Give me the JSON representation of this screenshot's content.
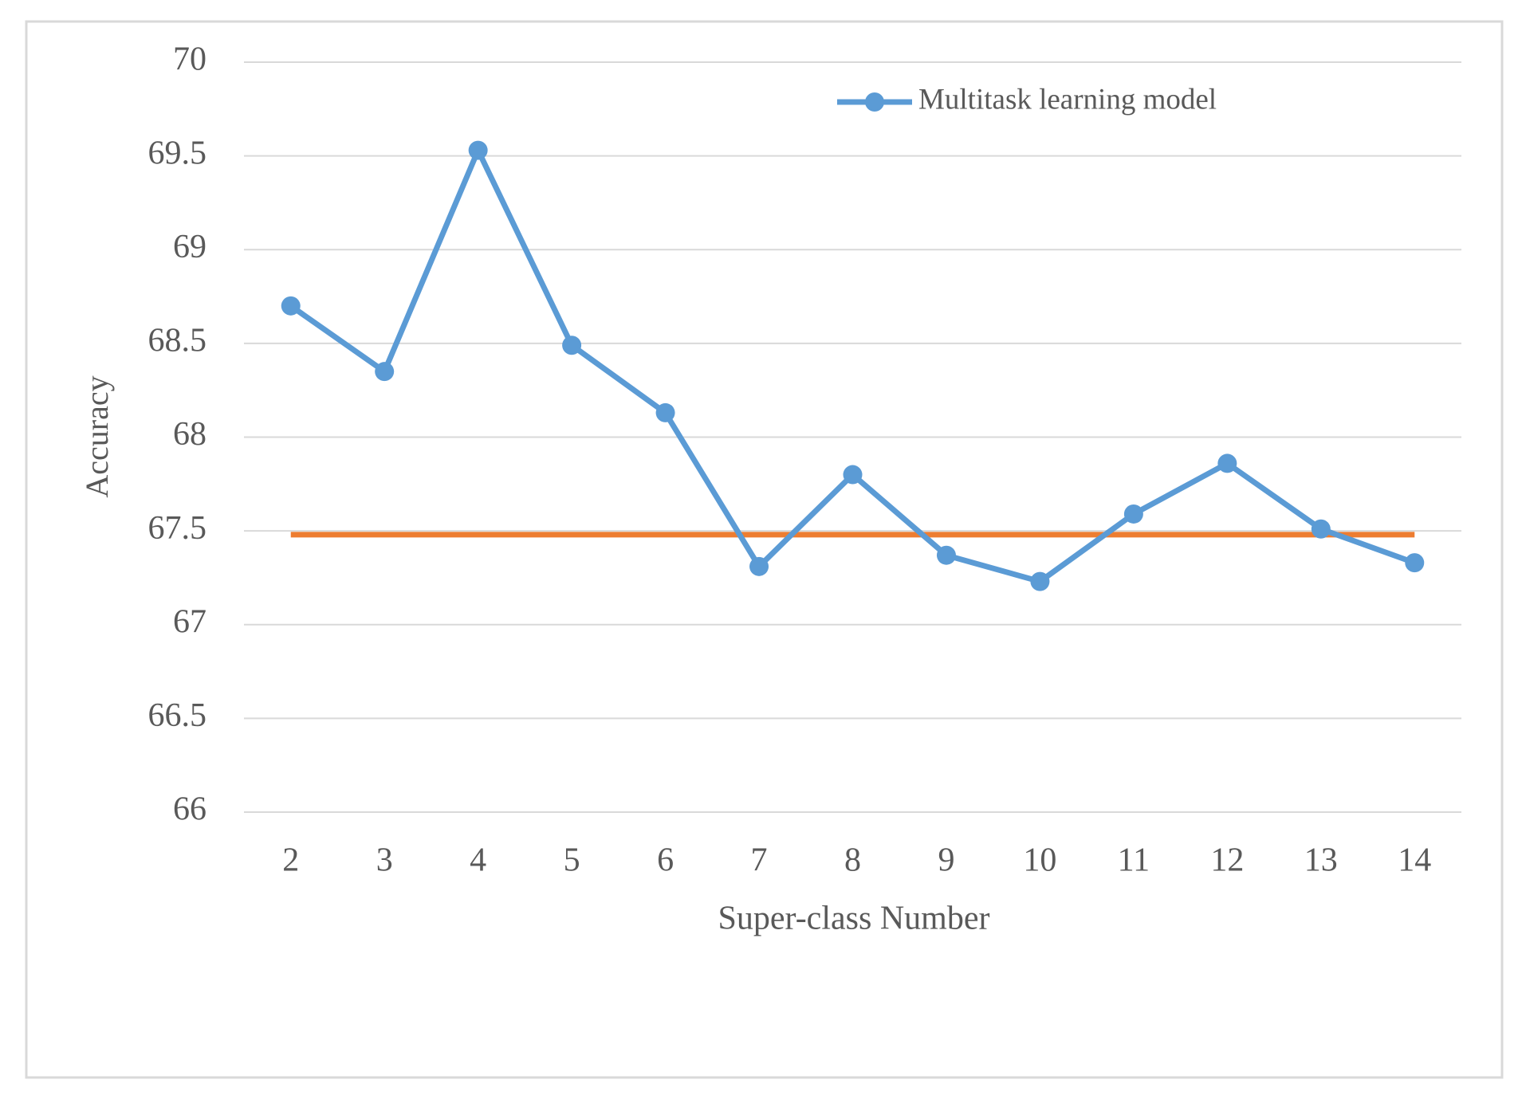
{
  "chart_data": {
    "type": "line",
    "x_label": "Super-class Number",
    "y_label": "Accuracy",
    "categories": [
      "2",
      "3",
      "4",
      "5",
      "6",
      "7",
      "8",
      "9",
      "10",
      "11",
      "12",
      "13",
      "14"
    ],
    "series": [
      {
        "name": "Multitask learning model",
        "color": "#5b9bd5",
        "values": [
          68.7,
          68.35,
          69.53,
          68.49,
          68.13,
          67.31,
          67.8,
          67.37,
          67.23,
          67.59,
          67.86,
          67.51,
          67.33
        ]
      }
    ],
    "hlines": [
      {
        "value": 67.48,
        "color": "#ed7d31"
      }
    ],
    "ylim": [
      66,
      70
    ],
    "yticks": [
      66,
      66.5,
      67,
      67.5,
      68,
      68.5,
      69,
      69.5,
      70
    ],
    "grid": true,
    "legend": "top-right"
  }
}
